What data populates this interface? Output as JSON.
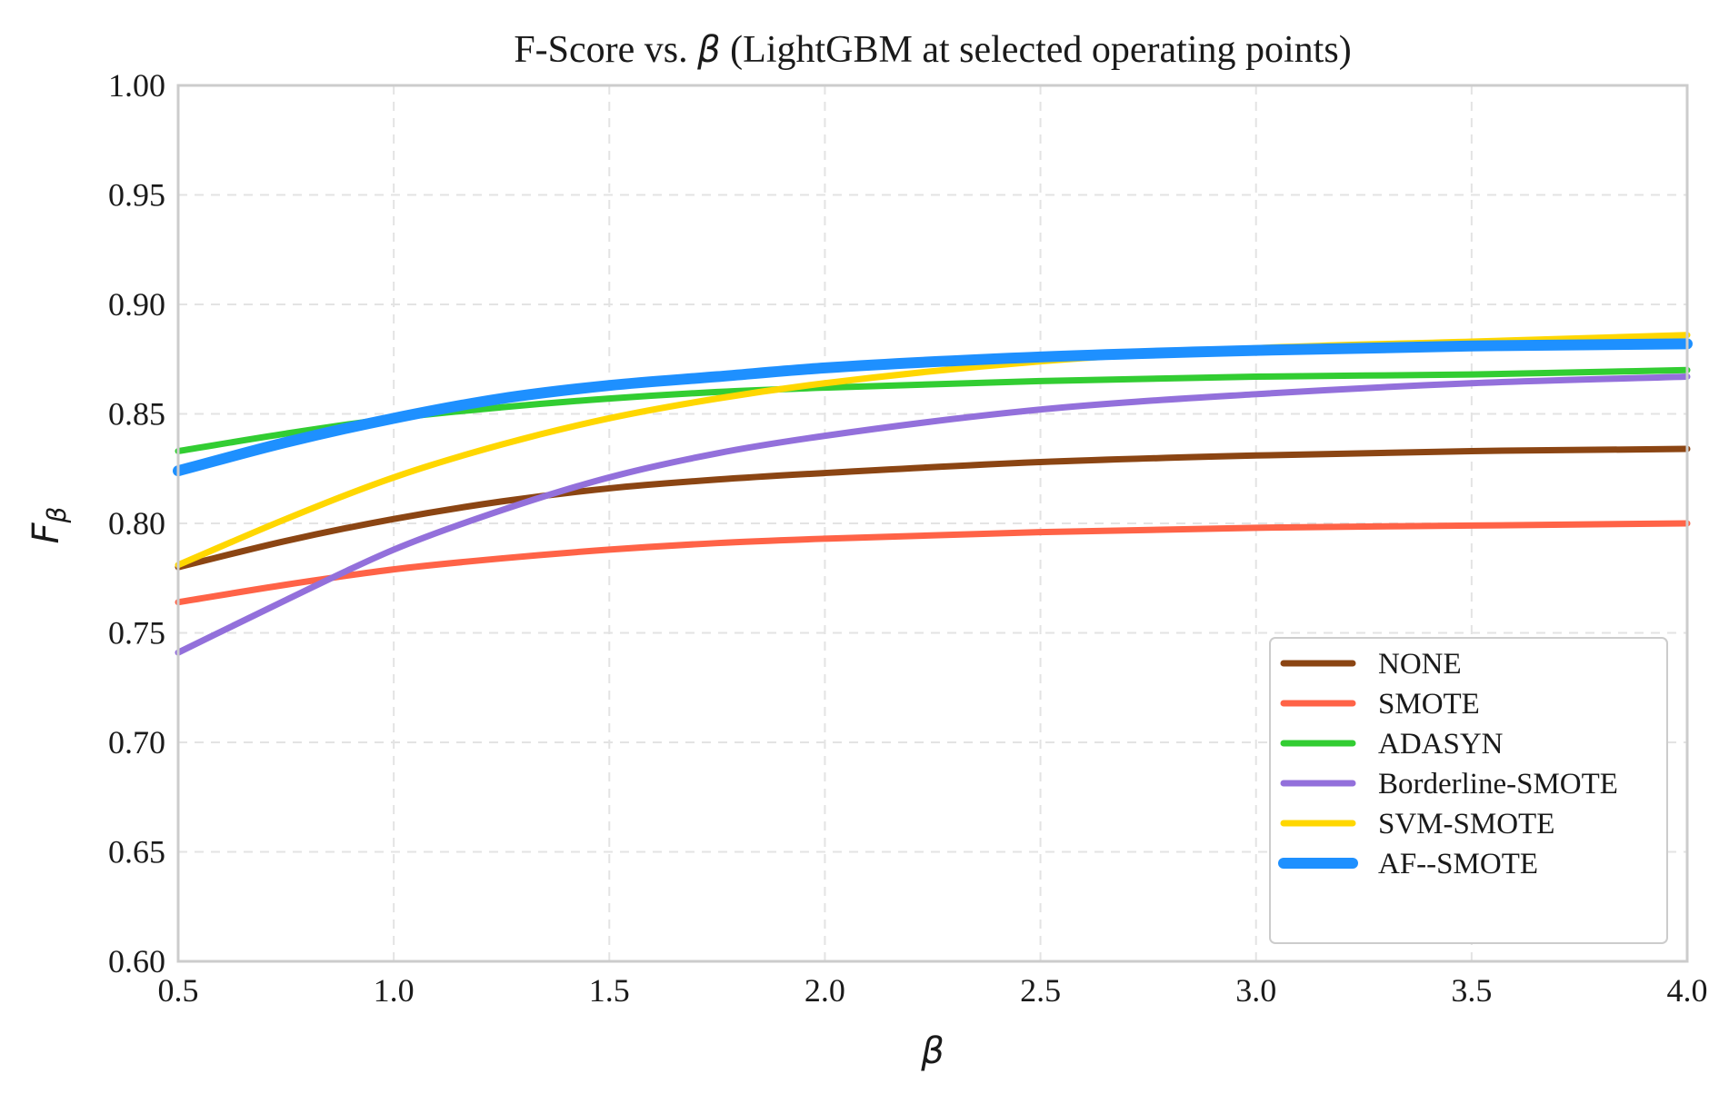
{
  "chart_data": {
    "type": "line",
    "title_prefix": "F-Score vs. ",
    "title_symbol": "β",
    "title_suffix": " (LightGBM at selected operating points)",
    "xlabel": "β",
    "ylabel_main": "F",
    "ylabel_sub": "β",
    "xlim": [
      0.5,
      4.0
    ],
    "ylim": [
      0.6,
      1.0
    ],
    "x_ticks": [
      "0.5",
      "1.0",
      "1.5",
      "2.0",
      "2.5",
      "3.0",
      "3.5",
      "4.0"
    ],
    "y_ticks": [
      "0.60",
      "0.65",
      "0.70",
      "0.75",
      "0.80",
      "0.85",
      "0.90",
      "0.95",
      "1.00"
    ],
    "grid": true,
    "legend_position": "bottom-right",
    "x": [
      0.5,
      0.75,
      1.0,
      1.25,
      1.5,
      1.75,
      2.0,
      2.5,
      3.0,
      3.5,
      4.0
    ],
    "series": [
      {
        "name": "NONE",
        "color": "#8B4513",
        "width": "normal",
        "values": [
          0.78,
          0.792,
          0.802,
          0.81,
          0.816,
          0.82,
          0.823,
          0.828,
          0.831,
          0.833,
          0.834
        ]
      },
      {
        "name": "SMOTE",
        "color": "#FF6347",
        "width": "normal",
        "values": [
          0.764,
          0.772,
          0.779,
          0.784,
          0.788,
          0.791,
          0.793,
          0.796,
          0.798,
          0.799,
          0.8
        ]
      },
      {
        "name": "ADASYN",
        "color": "#32CD32",
        "width": "normal",
        "values": [
          0.833,
          0.841,
          0.848,
          0.853,
          0.857,
          0.86,
          0.862,
          0.865,
          0.867,
          0.868,
          0.87
        ]
      },
      {
        "name": "Borderline-SMOTE",
        "color": "#9370DB",
        "width": "normal",
        "values": [
          0.741,
          0.765,
          0.788,
          0.806,
          0.821,
          0.832,
          0.84,
          0.852,
          0.859,
          0.864,
          0.867
        ]
      },
      {
        "name": "SVM-SMOTE",
        "color": "#FFD700",
        "width": "normal",
        "values": [
          0.781,
          0.802,
          0.821,
          0.836,
          0.848,
          0.857,
          0.864,
          0.874,
          0.88,
          0.883,
          0.886
        ]
      },
      {
        "name": "AF--SMOTE",
        "color": "#1E90FF",
        "width": "thick",
        "values": [
          0.824,
          0.837,
          0.848,
          0.857,
          0.863,
          0.867,
          0.871,
          0.876,
          0.879,
          0.881,
          0.882
        ]
      }
    ]
  }
}
